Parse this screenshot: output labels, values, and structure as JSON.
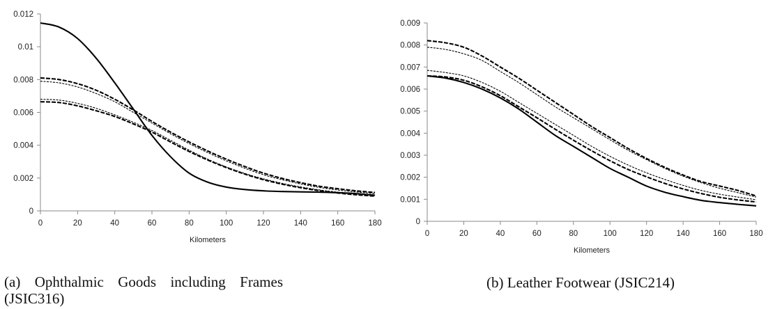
{
  "chart_data": [
    {
      "type": "line",
      "title": "",
      "caption": "(a) Ophthalmic Goods including Frames (JSIC316)",
      "xlabel": "Kilometers",
      "ylabel": "",
      "xlim": [
        0,
        180
      ],
      "ylim": [
        0,
        0.012
      ],
      "xticks": [
        "0",
        "20",
        "40",
        "60",
        "80",
        "100",
        "120",
        "140",
        "160",
        "180"
      ],
      "yticks": [
        "0",
        "0.002",
        "0.004",
        "0.006",
        "0.008",
        "0.01",
        "0.012"
      ],
      "grid": false,
      "legend": "none",
      "x": [
        0,
        10,
        20,
        30,
        40,
        50,
        60,
        70,
        80,
        90,
        100,
        110,
        120,
        130,
        140,
        150,
        160,
        170,
        180
      ],
      "series": [
        {
          "style": "solid-thick",
          "values": [
            0.01145,
            0.0112,
            0.0105,
            0.0093,
            0.0078,
            0.0062,
            0.0046,
            0.0033,
            0.0023,
            0.00175,
            0.00145,
            0.0013,
            0.00122,
            0.00118,
            0.00116,
            0.00114,
            0.00111,
            0.00105,
            0.00095
          ]
        },
        {
          "style": "dashed-thick",
          "values": [
            0.0081,
            0.008,
            0.00775,
            0.00735,
            0.0068,
            0.00615,
            0.00545,
            0.0048,
            0.0042,
            0.00365,
            0.00315,
            0.0027,
            0.0023,
            0.00198,
            0.00172,
            0.0015,
            0.00135,
            0.00122,
            0.00112
          ]
        },
        {
          "style": "dashed-thin",
          "values": [
            0.0079,
            0.0078,
            0.00755,
            0.00715,
            0.00665,
            0.006,
            0.00535,
            0.0047,
            0.0041,
            0.00355,
            0.00305,
            0.0026,
            0.0022,
            0.0019,
            0.00164,
            0.00143,
            0.00127,
            0.00115,
            0.00105
          ]
        },
        {
          "style": "dashed-thin",
          "values": [
            0.0068,
            0.00675,
            0.00655,
            0.00625,
            0.00585,
            0.0054,
            0.0049,
            0.0043,
            0.0037,
            0.00315,
            0.00268,
            0.00228,
            0.00195,
            0.00168,
            0.00146,
            0.00128,
            0.00114,
            0.00103,
            0.00095
          ]
        },
        {
          "style": "dashed-thick",
          "values": [
            0.00665,
            0.0066,
            0.0064,
            0.0061,
            0.00575,
            0.0053,
            0.0048,
            0.0042,
            0.00362,
            0.0031,
            0.00264,
            0.00224,
            0.0019,
            0.00163,
            0.00141,
            0.00123,
            0.00109,
            0.00098,
            0.0009
          ]
        }
      ]
    },
    {
      "type": "line",
      "title": "",
      "caption": "(b) Leather Footwear (JSIC214)",
      "xlabel": "Kilometers",
      "ylabel": "",
      "xlim": [
        0,
        180
      ],
      "ylim": [
        0,
        0.009
      ],
      "xticks": [
        "0",
        "20",
        "40",
        "60",
        "80",
        "100",
        "120",
        "140",
        "160",
        "180"
      ],
      "yticks": [
        "0",
        "0.001",
        "0.002",
        "0.003",
        "0.004",
        "0.005",
        "0.006",
        "0.007",
        "0.008",
        "0.009"
      ],
      "grid": false,
      "legend": "none",
      "x": [
        0,
        10,
        20,
        30,
        40,
        50,
        60,
        70,
        80,
        90,
        100,
        110,
        120,
        130,
        140,
        150,
        160,
        170,
        180
      ],
      "series": [
        {
          "style": "dashed-thick",
          "values": [
            0.0082,
            0.0081,
            0.0079,
            0.0075,
            0.007,
            0.0065,
            0.00595,
            0.0054,
            0.00485,
            0.0043,
            0.0038,
            0.0033,
            0.00285,
            0.00245,
            0.0021,
            0.0018,
            0.0016,
            0.0014,
            0.00115
          ]
        },
        {
          "style": "dashed-thin",
          "values": [
            0.0079,
            0.0078,
            0.0076,
            0.0073,
            0.0068,
            0.0063,
            0.00575,
            0.0052,
            0.0047,
            0.0042,
            0.0037,
            0.00322,
            0.0028,
            0.0024,
            0.00205,
            0.00175,
            0.0015,
            0.0013,
            0.0011
          ]
        },
        {
          "style": "dashed-thin",
          "values": [
            0.00685,
            0.00675,
            0.0066,
            0.0063,
            0.0059,
            0.0054,
            0.0049,
            0.0044,
            0.0039,
            0.0034,
            0.00295,
            0.00255,
            0.0022,
            0.0019,
            0.00163,
            0.0014,
            0.00123,
            0.0011,
            0.00098
          ]
        },
        {
          "style": "dashed-thick",
          "values": [
            0.0066,
            0.00655,
            0.0064,
            0.0061,
            0.0057,
            0.0052,
            0.0047,
            0.00418,
            0.00368,
            0.0032,
            0.00275,
            0.00235,
            0.00202,
            0.00172,
            0.00147,
            0.00126,
            0.00109,
            0.00097,
            0.00088
          ]
        },
        {
          "style": "solid-thick",
          "values": [
            0.0066,
            0.0065,
            0.0063,
            0.006,
            0.0056,
            0.0051,
            0.0045,
            0.0039,
            0.0034,
            0.0029,
            0.0024,
            0.002,
            0.0016,
            0.00132,
            0.00112,
            0.00095,
            0.00085,
            0.00077,
            0.0007
          ]
        }
      ]
    }
  ]
}
